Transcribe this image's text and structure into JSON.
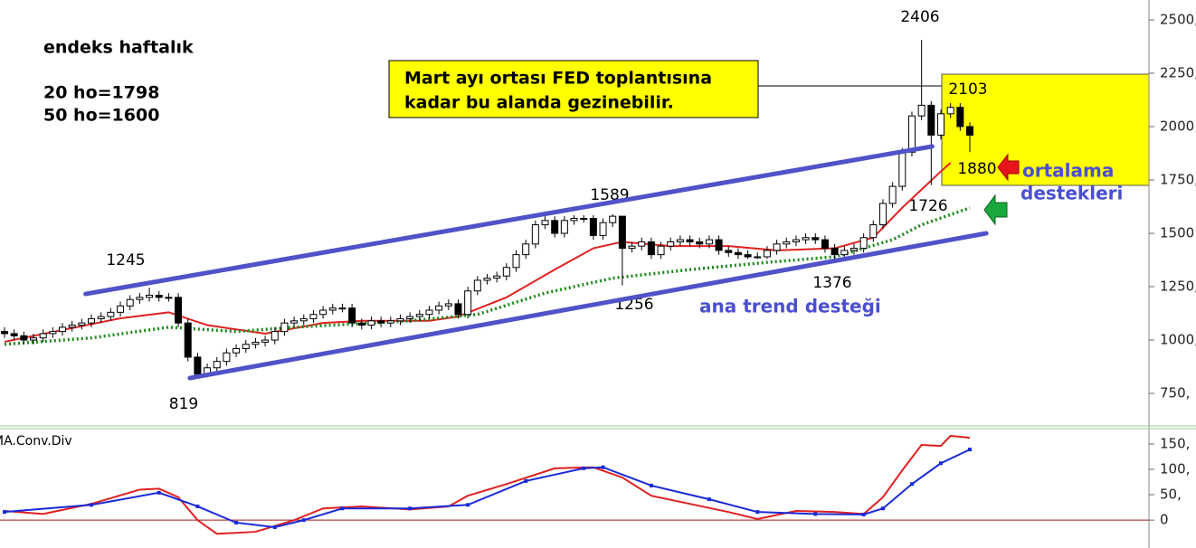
{
  "chart_data": [
    {
      "type": "candlestick",
      "title": "endeks haftalık",
      "notes": [
        "20 ho=1798",
        "50 ho=1600"
      ],
      "callout": [
        "Mart ayı ortası FED toplantısına",
        "kadar bu alanda gezinebilir."
      ],
      "support_label": [
        "ortalama",
        "destekleri"
      ],
      "trend_label": "ana trend desteği",
      "annotations": [
        2406,
        2103,
        1880,
        1726,
        1589,
        1245,
        819,
        1256,
        1376
      ],
      "up_color": "#ffffff",
      "down_color": "#000000",
      "open": [
        1040,
        1030,
        1020,
        1000,
        1010,
        1030,
        1040,
        1060,
        1070,
        1080,
        1100,
        1110,
        1130,
        1160,
        1190,
        1200,
        1210,
        1200,
        1200,
        1080,
        920,
        840,
        870,
        900,
        940,
        960,
        980,
        990,
        1000,
        1040,
        1080,
        1090,
        1100,
        1120,
        1140,
        1150,
        1150,
        1080,
        1070,
        1090,
        1080,
        1090,
        1100,
        1110,
        1120,
        1140,
        1160,
        1170,
        1120,
        1230,
        1280,
        1290,
        1300,
        1340,
        1400,
        1450,
        1540,
        1560,
        1500,
        1560,
        1570,
        1570,
        1490,
        1550,
        1580,
        1430,
        1440,
        1460,
        1400,
        1440,
        1460,
        1470,
        1460,
        1450,
        1470,
        1420,
        1410,
        1400,
        1390,
        1390,
        1420,
        1450,
        1460,
        1470,
        1480,
        1470,
        1430,
        1400,
        1420,
        1430,
        1480,
        1540,
        1640,
        1720,
        1880,
        2050,
        2100,
        1960,
        2060,
        2090,
        2000
      ],
      "high": [
        1060,
        1050,
        1040,
        1030,
        1050,
        1060,
        1080,
        1090,
        1100,
        1120,
        1130,
        1150,
        1180,
        1210,
        1220,
        1245,
        1230,
        1220,
        1220,
        1100,
        940,
        890,
        920,
        960,
        980,
        1000,
        1010,
        1020,
        1060,
        1100,
        1110,
        1120,
        1140,
        1160,
        1170,
        1170,
        1170,
        1100,
        1110,
        1110,
        1110,
        1120,
        1130,
        1140,
        1160,
        1180,
        1190,
        1190,
        1250,
        1300,
        1310,
        1320,
        1360,
        1420,
        1470,
        1560,
        1580,
        1580,
        1580,
        1585,
        1585,
        1585,
        1570,
        1589,
        1580,
        1460,
        1480,
        1480,
        1460,
        1480,
        1490,
        1490,
        1480,
        1490,
        1490,
        1440,
        1430,
        1420,
        1410,
        1440,
        1470,
        1480,
        1490,
        1500,
        1500,
        1490,
        1450,
        1440,
        1450,
        1500,
        1560,
        1660,
        1740,
        1900,
        2070,
        2406,
        2120,
        2080,
        2110,
        2110,
        2020
      ],
      "low": [
        1010,
        1000,
        980,
        980,
        990,
        1010,
        1020,
        1040,
        1050,
        1060,
        1080,
        1090,
        1110,
        1140,
        1170,
        1180,
        1180,
        1180,
        1060,
        900,
        819,
        825,
        850,
        880,
        920,
        940,
        960,
        970,
        980,
        1020,
        1060,
        1070,
        1080,
        1100,
        1120,
        1130,
        1060,
        1050,
        1050,
        1060,
        1060,
        1070,
        1080,
        1090,
        1100,
        1120,
        1140,
        1100,
        1100,
        1210,
        1260,
        1270,
        1280,
        1320,
        1380,
        1430,
        1520,
        1480,
        1480,
        1540,
        1550,
        1470,
        1470,
        1530,
        1256,
        1410,
        1420,
        1380,
        1380,
        1420,
        1440,
        1440,
        1430,
        1430,
        1400,
        1390,
        1380,
        1380,
        1380,
        1380,
        1400,
        1430,
        1440,
        1450,
        1450,
        1410,
        1376,
        1390,
        1400,
        1410,
        1460,
        1520,
        1620,
        1700,
        1860,
        2030,
        1726,
        1940,
        2040,
        1980,
        1880
      ],
      "close": [
        1030,
        1020,
        1000,
        1010,
        1030,
        1040,
        1060,
        1070,
        1080,
        1100,
        1110,
        1130,
        1160,
        1190,
        1200,
        1210,
        1200,
        1200,
        1080,
        920,
        840,
        870,
        900,
        940,
        960,
        980,
        990,
        1000,
        1040,
        1080,
        1090,
        1100,
        1120,
        1140,
        1150,
        1150,
        1080,
        1070,
        1090,
        1080,
        1090,
        1100,
        1110,
        1120,
        1140,
        1160,
        1170,
        1120,
        1230,
        1280,
        1290,
        1300,
        1340,
        1400,
        1450,
        1540,
        1560,
        1500,
        1560,
        1570,
        1570,
        1490,
        1550,
        1580,
        1430,
        1440,
        1460,
        1400,
        1440,
        1460,
        1470,
        1460,
        1450,
        1470,
        1420,
        1410,
        1400,
        1390,
        1390,
        1420,
        1450,
        1460,
        1470,
        1480,
        1470,
        1430,
        1400,
        1420,
        1430,
        1480,
        1540,
        1640,
        1720,
        1880,
        2050,
        2100,
        1960,
        2060,
        2090,
        2000,
        1960
      ],
      "series": [
        {
          "color": "#e02020",
          "style": "solid",
          "x": [
            0,
            12,
            17,
            21,
            27,
            33,
            37,
            44,
            47,
            52,
            57,
            61,
            64,
            69,
            75,
            80,
            86,
            90,
            93,
            97,
            98
          ],
          "values": [
            992,
            1102,
            1130,
            1070,
            1030,
            1080,
            1090,
            1090,
            1110,
            1200,
            1330,
            1430,
            1460,
            1440,
            1440,
            1420,
            1430,
            1480,
            1620,
            1790,
            1830
          ]
        },
        {
          "color": "#1a8a1a",
          "style": "dotted",
          "x": [
            0,
            9,
            17,
            24,
            30,
            42,
            49,
            56,
            63,
            71,
            79,
            86,
            92,
            95,
            100
          ],
          "values": [
            980,
            1010,
            1060,
            1040,
            1060,
            1090,
            1120,
            1220,
            1290,
            1330,
            1364,
            1390,
            1470,
            1540,
            1619
          ]
        }
      ],
      "trend_lines": [
        {
          "color": "#4f52c8",
          "x": [
            8.4,
            96.1
          ],
          "values": [
            1216,
            1907
          ]
        },
        {
          "color": "#4f52c8",
          "x": [
            19.2,
            101.7
          ],
          "values": [
            822,
            1500
          ]
        }
      ],
      "ylim": [
        602,
        2593
      ],
      "yticks": [
        {
          "value": 2500,
          "label": "2500,"
        },
        {
          "value": 2250,
          "label": "2250,"
        },
        2000,
        {
          "value": 1750,
          "label": "1750,"
        },
        1500,
        {
          "value": 1250,
          "label": "1250,"
        },
        {
          "value": 1000,
          "label": "1000,"
        },
        {
          "value": 750,
          "label": "750,"
        }
      ]
    },
    {
      "type": "line",
      "title": "MA.Conv.Div",
      "series": [
        {
          "color": "#e02020",
          "markers": false,
          "x": [
            0,
            4,
            9,
            14,
            16,
            18,
            20,
            22,
            26,
            30,
            33,
            37,
            42,
            46,
            48,
            52,
            57,
            61,
            64,
            67,
            71,
            75,
            78,
            82,
            86,
            89,
            91,
            93,
            95,
            97,
            98,
            100
          ],
          "values": [
            18,
            12,
            32,
            60,
            62,
            45,
            0,
            -27,
            -23,
            0,
            23,
            27,
            21,
            27,
            48,
            71,
            102,
            104,
            84,
            48,
            32,
            16,
            2,
            18,
            16,
            12,
            45,
            98,
            148,
            146,
            166,
            162
          ]
        },
        {
          "color": "#1a2ad8",
          "markers": true,
          "x": [
            0,
            9,
            16,
            20,
            24,
            28,
            31,
            35,
            42,
            48,
            54,
            60,
            62,
            67,
            73,
            78,
            84,
            89,
            91,
            94,
            97,
            100
          ],
          "values": [
            16,
            30,
            54,
            27,
            -5,
            -14,
            0,
            23,
            23,
            30,
            77,
            102,
            104,
            68,
            41,
            16,
            12,
            11,
            23,
            71,
            112,
            139
          ]
        }
      ],
      "zero_line_color": "#a01818",
      "ylim": [
        -30,
        173
      ],
      "yticks": [
        {
          "value": 150,
          "label": "150,"
        },
        {
          "value": 100,
          "label": "100,"
        },
        {
          "value": 50,
          "label": "50,"
        },
        0
      ]
    }
  ]
}
